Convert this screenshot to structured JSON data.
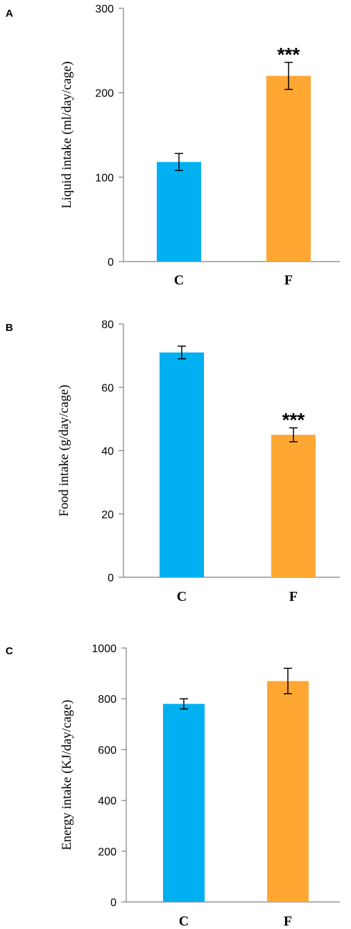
{
  "chart_data": [
    {
      "panel": "A",
      "type": "bar",
      "categories": [
        "C",
        "F"
      ],
      "values": [
        118,
        220
      ],
      "errors": [
        10,
        16
      ],
      "significance": [
        "",
        "***"
      ],
      "ylabel": "Liquid intake (ml/day/cage)",
      "ylim": [
        0,
        300
      ],
      "yticks": [
        0,
        100,
        200,
        300
      ],
      "colors": [
        "#00b0f0",
        "#ffa733"
      ],
      "grid": false
    },
    {
      "panel": "B",
      "type": "bar",
      "categories": [
        "C",
        "F"
      ],
      "values": [
        71,
        45
      ],
      "errors": [
        2,
        2.2
      ],
      "significance": [
        "",
        "***"
      ],
      "ylabel": "Food intake (g/day/cage)",
      "ylim": [
        0,
        80
      ],
      "yticks": [
        0,
        20,
        40,
        60,
        80
      ],
      "colors": [
        "#00b0f0",
        "#ffa733"
      ],
      "grid": false
    },
    {
      "panel": "C",
      "type": "bar",
      "categories": [
        "C",
        "F"
      ],
      "values": [
        780,
        870
      ],
      "errors": [
        20,
        50
      ],
      "significance": [
        "",
        ""
      ],
      "ylabel": "Energy intake (KJ/day/cage)",
      "ylim": [
        0,
        1000
      ],
      "yticks": [
        0,
        200,
        400,
        600,
        800,
        1000
      ],
      "colors": [
        "#00b0f0",
        "#ffa733"
      ],
      "grid": false
    }
  ]
}
